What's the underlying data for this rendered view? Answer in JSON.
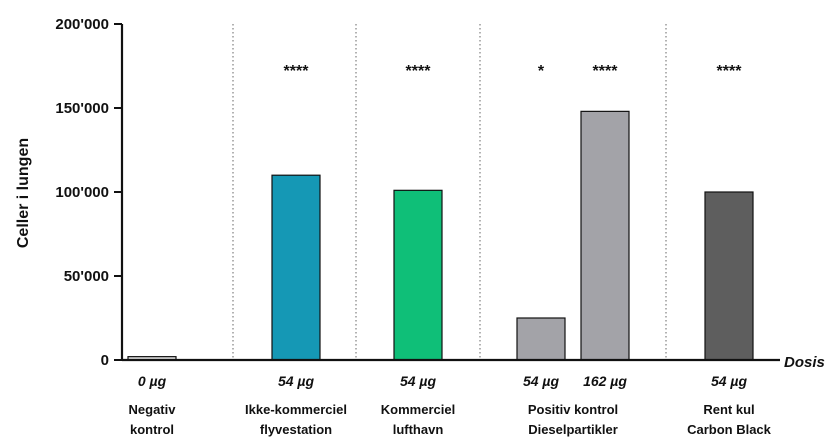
{
  "chart_data": {
    "type": "bar",
    "ylabel": "Celler i lungen",
    "xlabel": "Dosis",
    "ylim": [
      0,
      200000
    ],
    "yticks": [
      {
        "value": 0,
        "label": "0"
      },
      {
        "value": 50000,
        "label": "50'000"
      },
      {
        "value": 100000,
        "label": "100'000"
      },
      {
        "value": 150000,
        "label": "150'000"
      },
      {
        "value": 200000,
        "label": "200'000"
      }
    ],
    "bars": [
      {
        "dose": "0 µg",
        "value": 2000,
        "significance": "",
        "group": 0,
        "color": "#d9d9d9"
      },
      {
        "dose": "54 µg",
        "value": 110000,
        "significance": "****",
        "group": 1,
        "color": "#1598b5"
      },
      {
        "dose": "54 µg",
        "value": 101000,
        "significance": "****",
        "group": 2,
        "color": "#0fbf78"
      },
      {
        "dose": "54 µg",
        "value": 25000,
        "significance": "*",
        "group": 3,
        "color": "#a3a3a8"
      },
      {
        "dose": "162 µg",
        "value": 148000,
        "significance": "****",
        "group": 3,
        "color": "#a3a3a8"
      },
      {
        "dose": "54 µg",
        "value": 100000,
        "significance": "****",
        "group": 4,
        "color": "#5e5e5e"
      }
    ],
    "groups": [
      {
        "line1": "Negativ",
        "line2": "kontrol"
      },
      {
        "line1": "Ikke-kommerciel",
        "line2": "flyvestation"
      },
      {
        "line1": "Kommerciel",
        "line2": "lufthavn"
      },
      {
        "line1": "Positiv kontrol",
        "line2": "Dieselpartikler"
      },
      {
        "line1": "Rent kul",
        "line2": "Carbon Black"
      }
    ],
    "grid": false,
    "group_separators": true
  }
}
